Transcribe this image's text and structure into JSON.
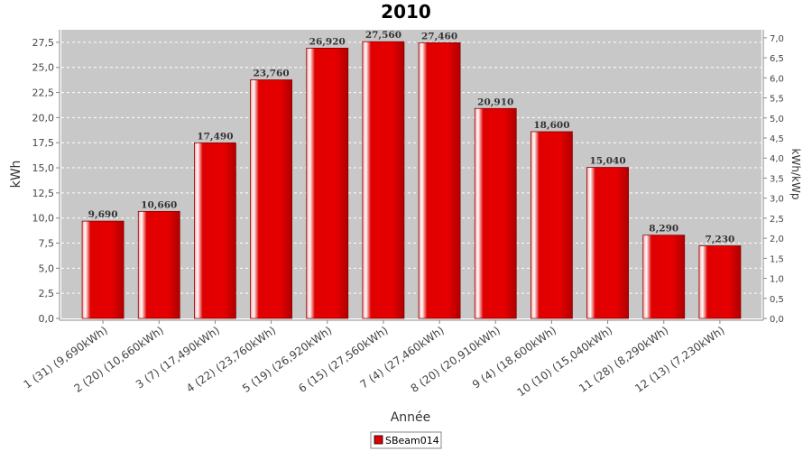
{
  "chart_data": {
    "type": "bar",
    "title": "2010",
    "xlabel": "Année",
    "ylabel": "kWh",
    "ylabel_right": "kWh/kWp",
    "ylim": [
      0,
      28.75
    ],
    "ylim_right": [
      0,
      7.2
    ],
    "yticks": [
      "0,0",
      "2,5",
      "5,0",
      "7,5",
      "10,0",
      "12,5",
      "15,0",
      "17,5",
      "20,0",
      "22,5",
      "25,0",
      "27,5"
    ],
    "yticks_right": [
      "0,0",
      "0,5",
      "1,0",
      "1,5",
      "2,0",
      "2,5",
      "3,0",
      "3,5",
      "4,0",
      "4,5",
      "5,0",
      "5,5",
      "6,0",
      "6,5",
      "7,0"
    ],
    "grid": true,
    "legend_position": "bottom",
    "categories": [
      "1 (31)  (9,690kWh)",
      "2 (20)  (10,660kWh)",
      "3 (7)  (17,490kWh)",
      "4 (22)  (23,760kWh)",
      "5 (19)  (26,920kWh)",
      "6 (15)  (27,560kWh)",
      "7 (4)  (27,460kWh)",
      "8 (20)  (20,910kWh)",
      "9 (4)  (18,600kWh)",
      "10 (10)  (15,040kWh)",
      "11 (28)  (8,290kWh)",
      "12 (13)  (7,230kWh)"
    ],
    "series": [
      {
        "name": "SBeam014",
        "color": "#e00000",
        "values": [
          9.69,
          10.66,
          17.49,
          23.76,
          26.92,
          27.56,
          27.46,
          20.91,
          18.6,
          15.04,
          8.29,
          7.23
        ],
        "labels": [
          "9,690",
          "10,660",
          "17,490",
          "23,760",
          "26,920",
          "27,560",
          "27,460",
          "20,910",
          "18,600",
          "15,040",
          "8,290",
          "7,230"
        ]
      }
    ]
  }
}
